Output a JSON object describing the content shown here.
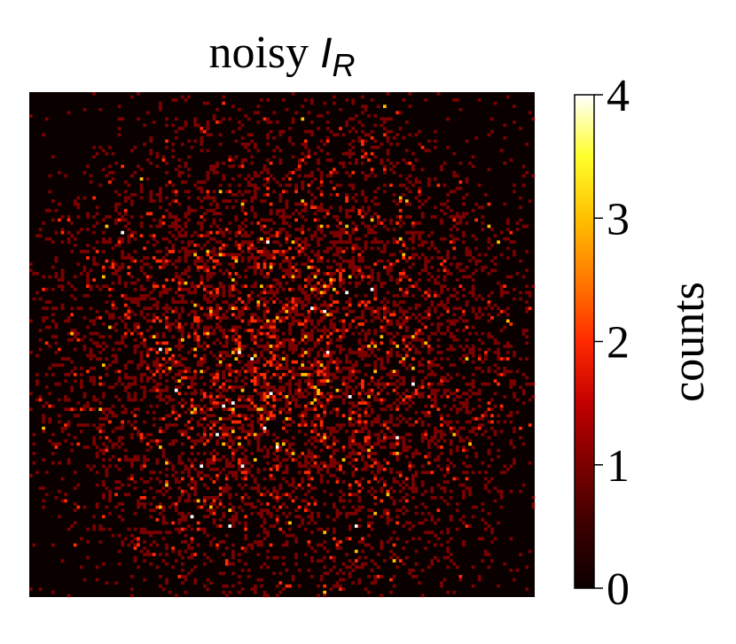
{
  "chart_data": {
    "type": "heatmap",
    "title_prefix": "noisy ",
    "title_var": "I",
    "title_sub": "R",
    "colormap": "hot",
    "colormap_stops": [
      "#0b0000",
      "#3a0000",
      "#7d0000",
      "#c20000",
      "#ff2a00",
      "#ff7a00",
      "#ffc000",
      "#ffff2a",
      "#ffffff"
    ],
    "colorbar_label": "counts",
    "colorbar_ticks": [
      "0",
      "1",
      "2",
      "3",
      "4"
    ],
    "colorbar_tick_values": [
      0,
      1,
      2,
      3,
      4
    ],
    "value_range": [
      0,
      4
    ],
    "grid_size": 160,
    "distribution": "Poisson counts, bright roughly circular central region fading to near-zero at the edges",
    "axes_visible": false
  }
}
